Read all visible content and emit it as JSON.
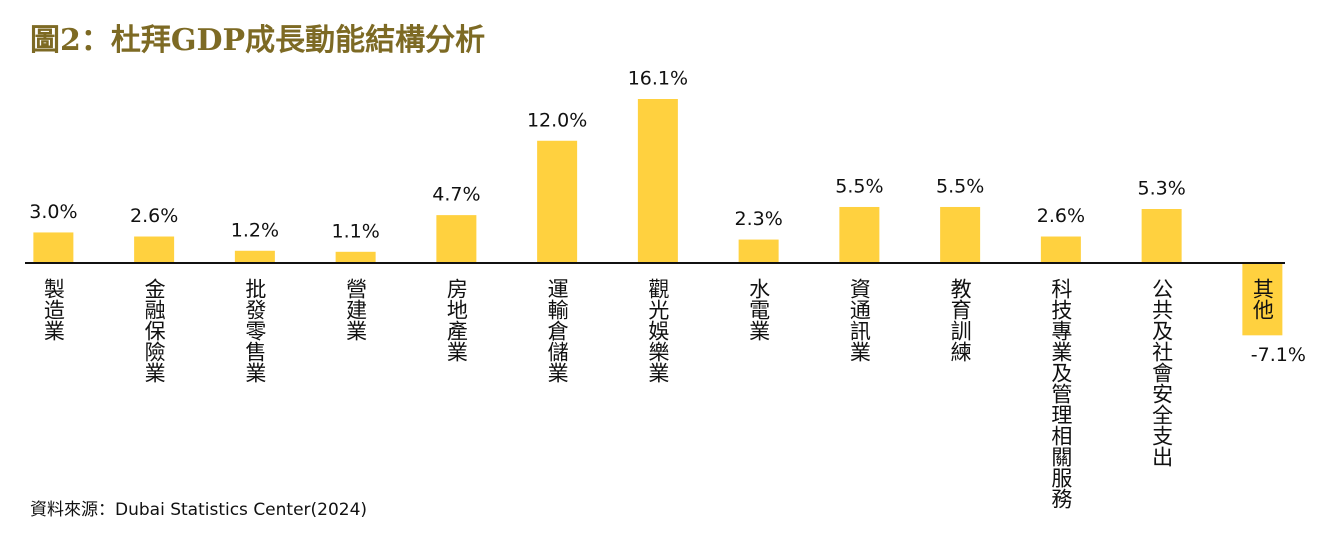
{
  "chart_data": {
    "type": "bar",
    "title": "圖2：杜拜GDP成長動能結構分析",
    "categories": [
      "製造業",
      "金融保險業",
      "批發零售業",
      "營建業",
      "房地產業",
      "運輸倉儲業",
      "觀光娛樂業",
      "水電業",
      "資通訊業",
      "教育訓練",
      "科技專業及管理相關服務",
      "公共及社會安全支出",
      "其他"
    ],
    "values": [
      3.0,
      2.6,
      1.2,
      1.1,
      4.7,
      12.0,
      16.1,
      2.3,
      5.5,
      5.5,
      2.6,
      5.3,
      -7.1
    ],
    "value_labels": [
      "3.0%",
      "2.6%",
      "1.2%",
      "1.1%",
      "4.7%",
      "12.0%",
      "16.1%",
      "2.3%",
      "5.5%",
      "5.5%",
      "2.6%",
      "5.3%",
      "-7.1%"
    ],
    "color": "#ffd13f",
    "source": "資料來源：Dubai Statistics Center(2024)"
  }
}
